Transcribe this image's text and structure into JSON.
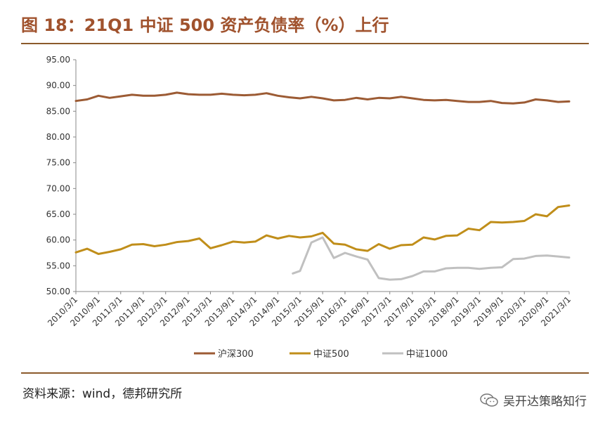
{
  "title": "图 18：21Q1 中证 500 资产负债率（%）上行",
  "source": "资料来源：wind，德邦研究所",
  "watermark": {
    "text": "吴开达策略知行",
    "icon": "wechat-icon"
  },
  "colors": {
    "frame": "#8b5a2b",
    "title": "#a0522d"
  },
  "chart_data": {
    "type": "line",
    "title": "",
    "xlabel": "",
    "ylabel": "",
    "ylim": [
      50,
      95
    ],
    "yticks": [
      "95.00",
      "90.00",
      "85.00",
      "80.00",
      "75.00",
      "70.00",
      "65.00",
      "60.00",
      "55.00",
      "50.00"
    ],
    "xticks": [
      "2010/3/1",
      "2010/9/1",
      "2011/3/1",
      "2011/9/1",
      "2012/3/1",
      "2012/9/1",
      "2013/3/1",
      "2013/9/1",
      "2014/3/1",
      "2014/9/1",
      "2015/3/1",
      "2015/9/1",
      "2016/3/1",
      "2016/9/1",
      "2017/3/1",
      "2017/9/1",
      "2018/3/1",
      "2018/9/1",
      "2019/3/1",
      "2019/9/1",
      "2020/3/1",
      "2020/9/1",
      "2021/3/1"
    ],
    "legend_position": "bottom",
    "grid": false,
    "series": [
      {
        "name": "沪深300",
        "color": "#9c5b34",
        "points": [
          [
            "2010/3/1",
            87.0
          ],
          [
            "2010/6/1",
            87.3
          ],
          [
            "2010/9/1",
            88.0
          ],
          [
            "2010/12/1",
            87.6
          ],
          [
            "2011/3/1",
            87.9
          ],
          [
            "2011/6/1",
            88.2
          ],
          [
            "2011/9/1",
            88.0
          ],
          [
            "2011/12/1",
            88.0
          ],
          [
            "2012/3/1",
            88.2
          ],
          [
            "2012/6/1",
            88.6
          ],
          [
            "2012/9/1",
            88.3
          ],
          [
            "2012/12/1",
            88.2
          ],
          [
            "2013/3/1",
            88.2
          ],
          [
            "2013/6/1",
            88.4
          ],
          [
            "2013/9/1",
            88.2
          ],
          [
            "2013/12/1",
            88.1
          ],
          [
            "2014/3/1",
            88.2
          ],
          [
            "2014/6/1",
            88.5
          ],
          [
            "2014/9/1",
            88.0
          ],
          [
            "2014/12/1",
            87.7
          ],
          [
            "2015/3/1",
            87.5
          ],
          [
            "2015/6/1",
            87.8
          ],
          [
            "2015/9/1",
            87.5
          ],
          [
            "2015/12/1",
            87.1
          ],
          [
            "2016/3/1",
            87.2
          ],
          [
            "2016/6/1",
            87.6
          ],
          [
            "2016/9/1",
            87.3
          ],
          [
            "2016/12/1",
            87.6
          ],
          [
            "2017/3/1",
            87.5
          ],
          [
            "2017/6/1",
            87.8
          ],
          [
            "2017/9/1",
            87.5
          ],
          [
            "2017/12/1",
            87.2
          ],
          [
            "2018/3/1",
            87.1
          ],
          [
            "2018/6/1",
            87.2
          ],
          [
            "2018/9/1",
            87.0
          ],
          [
            "2018/12/1",
            86.8
          ],
          [
            "2019/3/1",
            86.8
          ],
          [
            "2019/6/1",
            87.0
          ],
          [
            "2019/9/1",
            86.6
          ],
          [
            "2019/12/1",
            86.5
          ],
          [
            "2020/3/1",
            86.7
          ],
          [
            "2020/6/1",
            87.3
          ],
          [
            "2020/9/1",
            87.1
          ],
          [
            "2020/12/1",
            86.8
          ],
          [
            "2021/3/1",
            86.9
          ]
        ]
      },
      {
        "name": "中证500",
        "color": "#c08e1a",
        "points": [
          [
            "2010/3/1",
            57.6
          ],
          [
            "2010/6/1",
            58.3
          ],
          [
            "2010/9/1",
            57.3
          ],
          [
            "2010/12/1",
            57.7
          ],
          [
            "2011/3/1",
            58.2
          ],
          [
            "2011/6/1",
            59.1
          ],
          [
            "2011/9/1",
            59.2
          ],
          [
            "2011/12/1",
            58.8
          ],
          [
            "2012/3/1",
            59.1
          ],
          [
            "2012/6/1",
            59.6
          ],
          [
            "2012/9/1",
            59.8
          ],
          [
            "2012/12/1",
            60.3
          ],
          [
            "2013/3/1",
            58.4
          ],
          [
            "2013/6/1",
            59.0
          ],
          [
            "2013/9/1",
            59.7
          ],
          [
            "2013/12/1",
            59.5
          ],
          [
            "2014/3/1",
            59.7
          ],
          [
            "2014/6/1",
            60.9
          ],
          [
            "2014/9/1",
            60.3
          ],
          [
            "2014/12/1",
            60.8
          ],
          [
            "2015/3/1",
            60.5
          ],
          [
            "2015/6/1",
            60.7
          ],
          [
            "2015/9/1",
            61.4
          ],
          [
            "2015/12/1",
            59.3
          ],
          [
            "2016/3/1",
            59.1
          ],
          [
            "2016/6/1",
            58.2
          ],
          [
            "2016/9/1",
            57.9
          ],
          [
            "2016/12/1",
            59.2
          ],
          [
            "2017/3/1",
            58.3
          ],
          [
            "2017/6/1",
            59.0
          ],
          [
            "2017/9/1",
            59.1
          ],
          [
            "2017/12/1",
            60.5
          ],
          [
            "2018/3/1",
            60.1
          ],
          [
            "2018/6/1",
            60.8
          ],
          [
            "2018/9/1",
            60.9
          ],
          [
            "2018/12/1",
            62.2
          ],
          [
            "2019/3/1",
            61.9
          ],
          [
            "2019/6/1",
            63.5
          ],
          [
            "2019/9/1",
            63.4
          ],
          [
            "2019/12/1",
            63.5
          ],
          [
            "2020/3/1",
            63.7
          ],
          [
            "2020/6/1",
            65.0
          ],
          [
            "2020/9/1",
            64.6
          ],
          [
            "2020/12/1",
            66.4
          ],
          [
            "2021/3/1",
            66.7
          ]
        ]
      },
      {
        "name": "中证1000",
        "color": "#c0c0c0",
        "points": [
          [
            "2015/1/1",
            53.5
          ],
          [
            "2015/3/1",
            54.0
          ],
          [
            "2015/6/1",
            59.5
          ],
          [
            "2015/9/1",
            60.5
          ],
          [
            "2015/12/1",
            56.5
          ],
          [
            "2016/3/1",
            57.5
          ],
          [
            "2016/6/1",
            56.8
          ],
          [
            "2016/9/1",
            56.2
          ],
          [
            "2016/12/1",
            52.6
          ],
          [
            "2017/3/1",
            52.3
          ],
          [
            "2017/6/1",
            52.4
          ],
          [
            "2017/9/1",
            53.0
          ],
          [
            "2017/12/1",
            53.9
          ],
          [
            "2018/3/1",
            53.9
          ],
          [
            "2018/6/1",
            54.5
          ],
          [
            "2018/9/1",
            54.6
          ],
          [
            "2018/12/1",
            54.6
          ],
          [
            "2019/3/1",
            54.4
          ],
          [
            "2019/6/1",
            54.6
          ],
          [
            "2019/9/1",
            54.7
          ],
          [
            "2019/12/1",
            56.3
          ],
          [
            "2020/3/1",
            56.4
          ],
          [
            "2020/6/1",
            56.9
          ],
          [
            "2020/9/1",
            57.0
          ],
          [
            "2020/12/1",
            56.8
          ],
          [
            "2021/3/1",
            56.6
          ]
        ]
      }
    ]
  }
}
